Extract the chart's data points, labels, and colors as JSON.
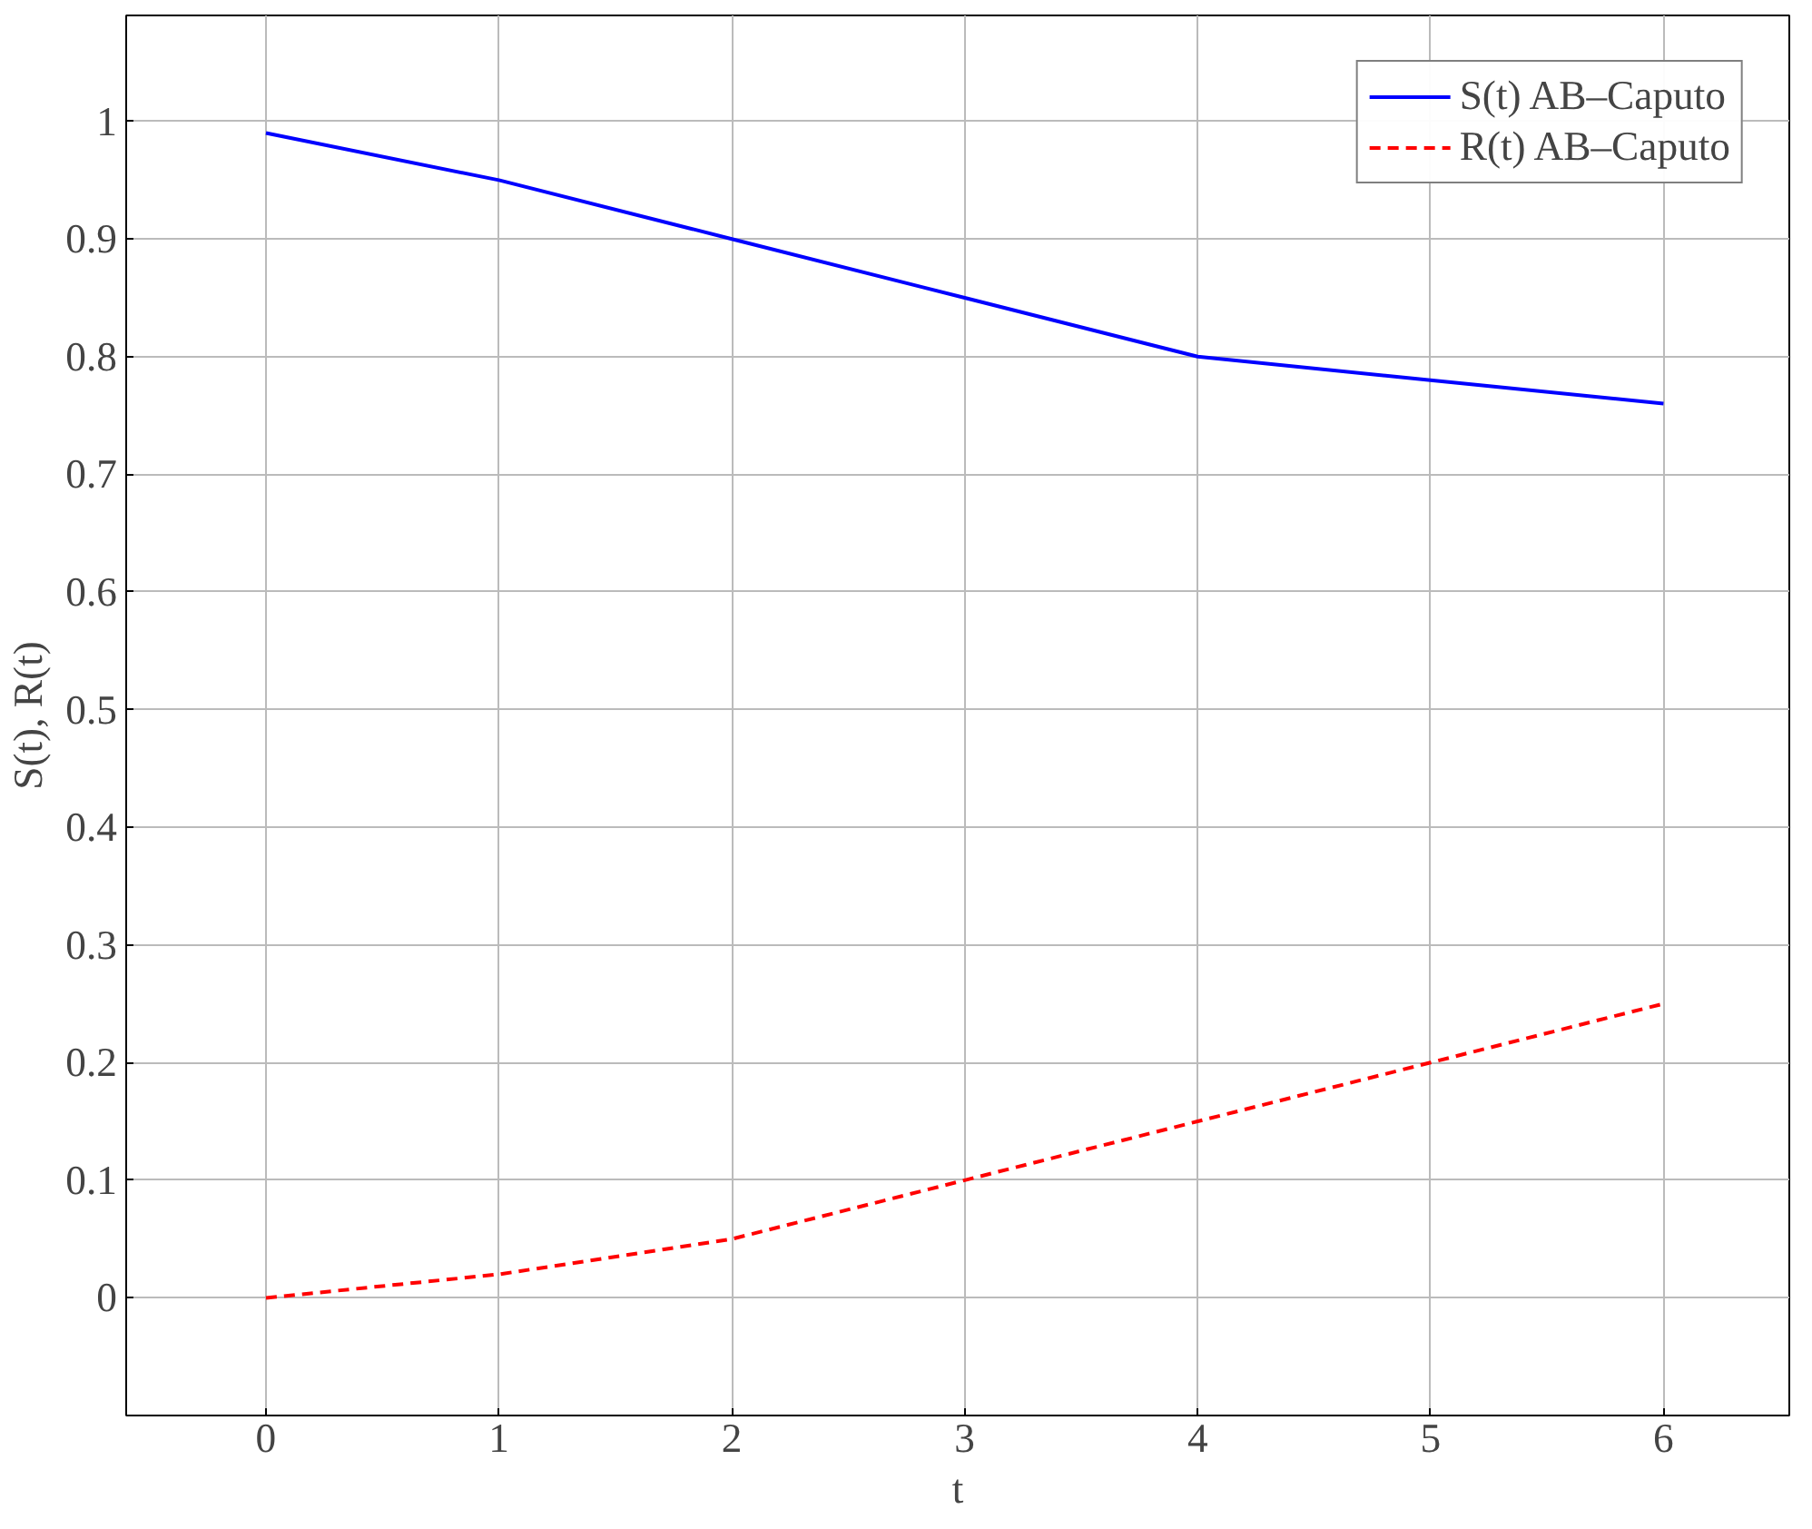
{
  "chart_data": {
    "type": "line",
    "xlabel": "t",
    "ylabel": "S(t), R(t)",
    "x": [
      0,
      1,
      2,
      3,
      4,
      5,
      6
    ],
    "series": [
      {
        "name": "S(t) AB–Caputo",
        "color": "#0000ff",
        "values": [
          0.99,
          0.95,
          0.9,
          0.85,
          0.8,
          0.78,
          0.76
        ],
        "line_style": "solid"
      },
      {
        "name": "R(t) AB–Caputo",
        "color": "#ff0000",
        "values": [
          0,
          0.02,
          0.05,
          0.1,
          0.15,
          0.2,
          0.25
        ],
        "line_style": "dashed"
      }
    ],
    "xlim": [
      -0.6,
      6.54
    ],
    "ylim": [
      -0.1,
      1.09
    ],
    "xticks": [
      0,
      1,
      2,
      3,
      4,
      5,
      6
    ],
    "yticks": [
      0,
      0.1,
      0.2,
      0.3,
      0.4,
      0.5,
      0.6,
      0.7,
      0.8,
      0.9,
      1
    ],
    "grid": true,
    "legend": "top right",
    "marker": "none"
  }
}
